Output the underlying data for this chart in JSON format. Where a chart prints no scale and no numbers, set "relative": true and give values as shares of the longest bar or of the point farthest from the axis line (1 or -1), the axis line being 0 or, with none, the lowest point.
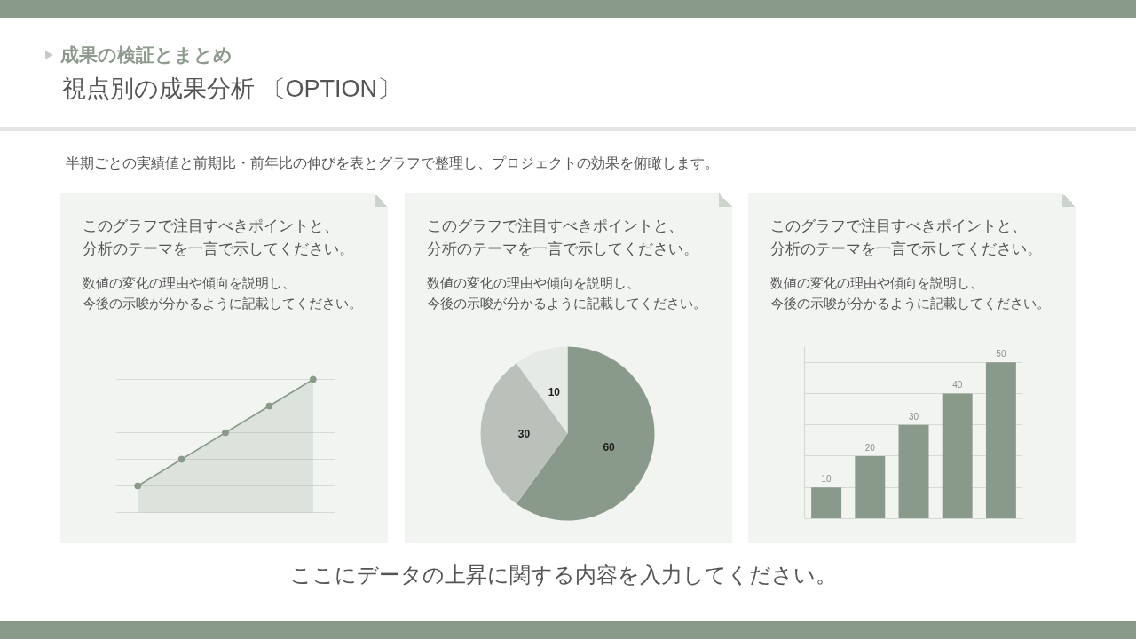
{
  "chart_data": [
    {
      "type": "other",
      "subtitle": "成果の検証とまとめ",
      "title": "視点別の成果分析 〔OPTION〕",
      "annotations": [
        "半期ごとの実績値と前期比・前年比の伸びを表とグラフで整理し、プロジェクトの効果を俯瞰します。"
      ]
    },
    {
      "type": "area",
      "title": "このグラフで注目すべきポイントと、分析のテーマを一言で示してください。",
      "subtitle": "数値の変化の理由や傾向を説明し、今後の示唆が分かるように記載してください。",
      "categories": [
        null,
        null,
        null,
        null,
        null
      ],
      "relative": true,
      "values": [
        0.2,
        0.4,
        0.6,
        0.8,
        1.0
      ],
      "color": "#8a9a8a",
      "marker": "circle",
      "grid": "y"
    },
    {
      "type": "pie",
      "title": "このグラフで注目すべきポイントと、分析のテーマを一言で示してください。",
      "subtitle": "数値の変化の理由や傾向を説明し、今後の示唆が分かるように記載してください。",
      "categories": [
        null,
        null,
        null
      ],
      "values": [
        60,
        30,
        10
      ],
      "colors": [
        "#8a9a8a",
        "#bac0ba",
        "#e6eae6"
      ],
      "data_labels": true
    },
    {
      "type": "bar",
      "title": "このグラフで注目すべきポイントと、分析のテーマを一言で示してください。",
      "subtitle": "数値の変化の理由や傾向を説明し、今後の示唆が分かるように記載してください。",
      "categories": [
        null,
        null,
        null,
        null,
        null
      ],
      "values": [
        10,
        20,
        30,
        40,
        50
      ],
      "color": "#8a9a8a",
      "ylim": [
        0,
        55
      ],
      "yticks": [
        {
          "value": 10,
          "label": null
        },
        {
          "value": 20,
          "label": null
        },
        {
          "value": 30,
          "label": null
        },
        {
          "value": 40,
          "label": null
        },
        {
          "value": 50,
          "label": null
        }
      ],
      "grid": "y",
      "data_labels": true
    },
    {
      "type": "other",
      "annotations": [
        "ここにデータの上昇に関する内容を入力してください。"
      ]
    }
  ]
}
